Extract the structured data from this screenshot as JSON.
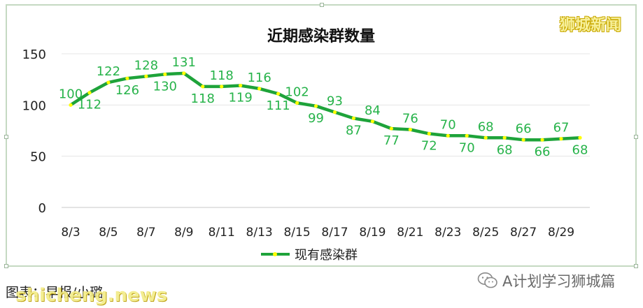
{
  "chart_data": {
    "type": "line",
    "title": "近期感染群数量",
    "categories": [
      "8/3",
      "8/4",
      "8/5",
      "8/6",
      "8/7",
      "8/8",
      "8/9",
      "8/10",
      "8/11",
      "8/12",
      "8/13",
      "8/14",
      "8/15",
      "8/16",
      "8/17",
      "8/18",
      "8/19",
      "8/20",
      "8/21",
      "8/22",
      "8/23",
      "8/24",
      "8/25",
      "8/26",
      "8/27",
      "8/28",
      "8/29",
      "8/30"
    ],
    "x_tick_labels": [
      "8/3",
      "8/5",
      "8/7",
      "8/9",
      "8/11",
      "8/13",
      "8/15",
      "8/17",
      "8/19",
      "8/21",
      "8/23",
      "8/25",
      "8/27",
      "8/29"
    ],
    "series": [
      {
        "name": "现有感染群",
        "values": [
          100,
          112,
          122,
          126,
          128,
          130,
          131,
          118,
          118,
          119,
          116,
          111,
          102,
          99,
          93,
          87,
          84,
          77,
          76,
          72,
          70,
          70,
          68,
          68,
          66,
          66,
          67,
          68
        ],
        "label_positions": [
          "above",
          "below",
          "above",
          "below",
          "above",
          "below",
          "above",
          "below",
          "above",
          "below",
          "above",
          "below",
          "above",
          "below",
          "above",
          "below",
          "above",
          "below",
          "above",
          "below",
          "above",
          "below",
          "above",
          "below",
          "above",
          "below",
          "above",
          "below"
        ]
      }
    ],
    "yticks": [
      0,
      50,
      100,
      150
    ],
    "ylim": [
      0,
      150
    ],
    "grid": "horizontal",
    "legend_position": "bottom-center",
    "colors": {
      "line": "#1ea33a",
      "marker": "#ffff00",
      "label": "#27b34a",
      "grid": "#e4e4e4"
    }
  },
  "watermark_top": "狮城新闻",
  "source_label": "图表：",
  "source_name": "早报/小璐",
  "watermark_bottom": "shicheng.news",
  "wechat_label": "A计划学习狮城篇",
  "wechat_icon": "wechat-icon"
}
